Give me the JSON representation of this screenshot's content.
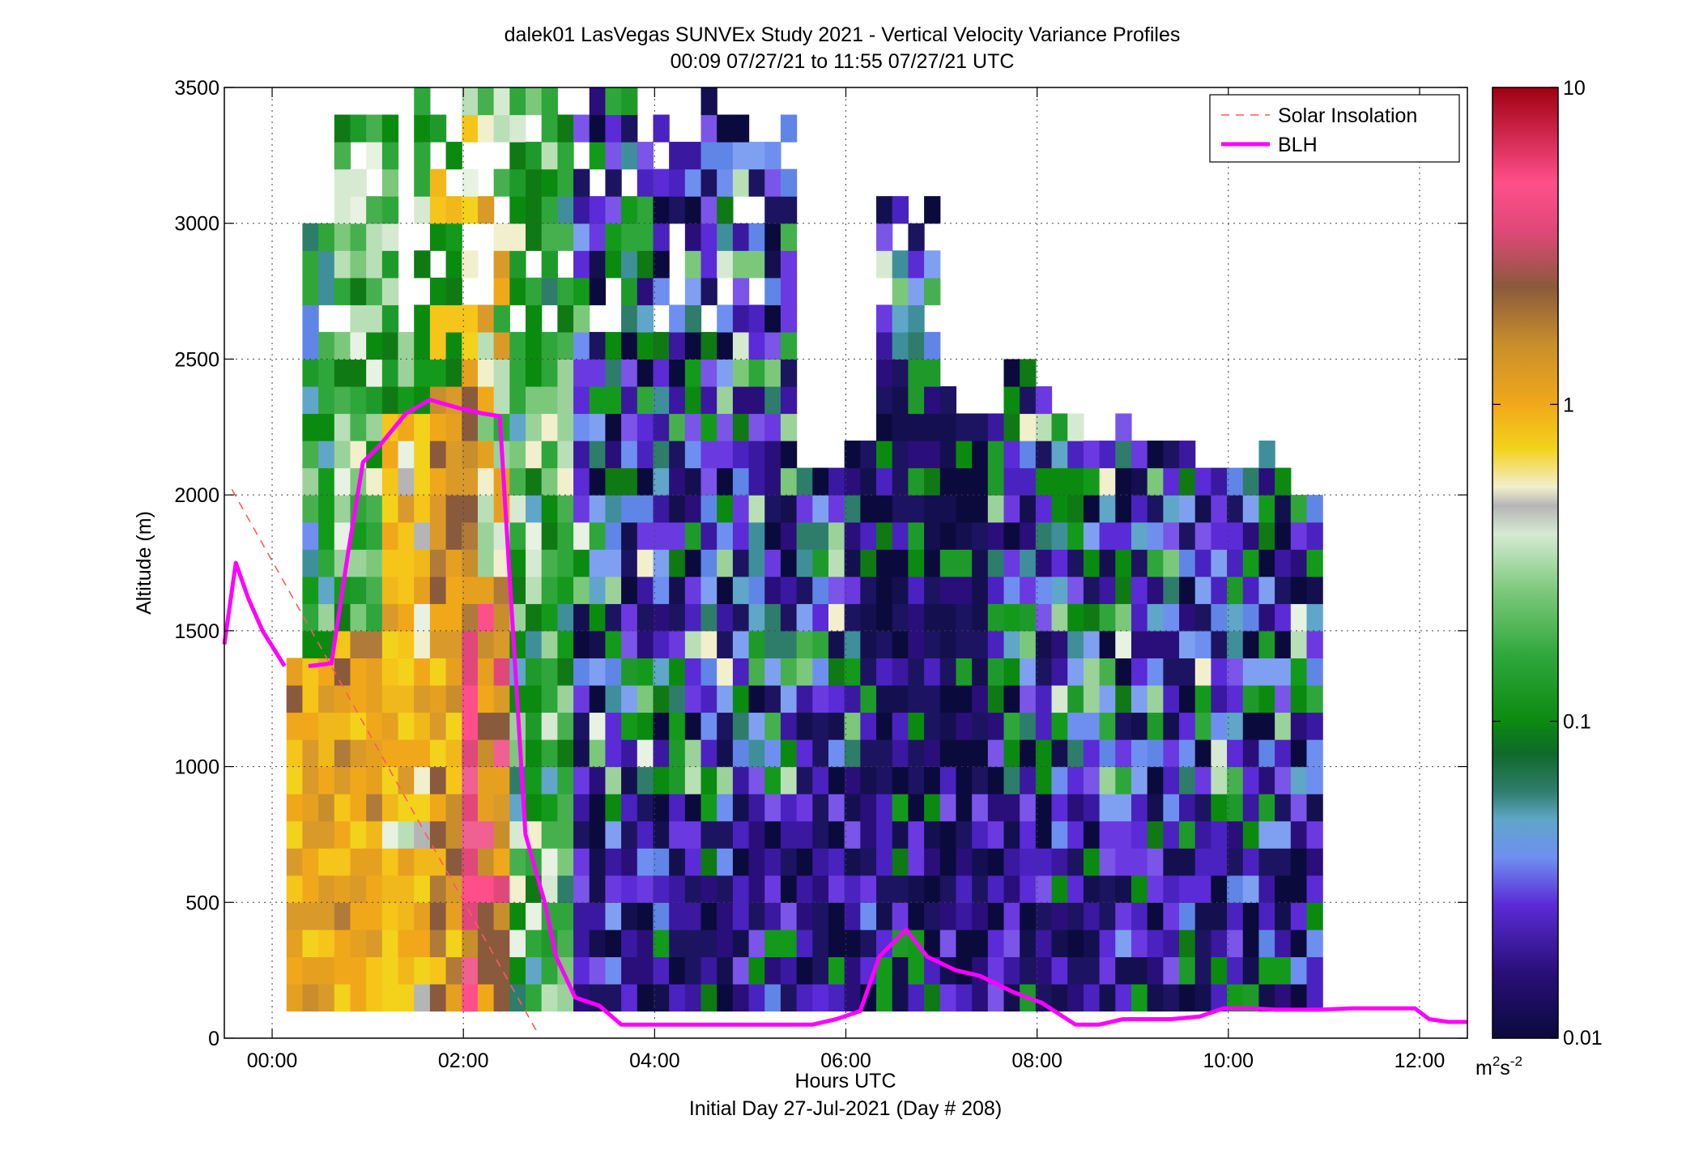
{
  "chart_data": {
    "type": "heatmap",
    "title": "dalek01 LasVegas SUNVEx Study 2021 - Vertical Velocity Variance Profiles",
    "subtitle": "00:09 07/27/21 to 11:55 07/27/21  UTC",
    "xlabel": "Hours UTC",
    "xlabel2": "Initial Day 27-Jul-2021 (Day # 208)",
    "ylabel": "Altitude (m)",
    "xlim": [
      -0.5,
      12.5
    ],
    "ylim": [
      0,
      3500
    ],
    "x_ticks": [
      0,
      2,
      4,
      6,
      8,
      10,
      12
    ],
    "x_tick_labels": [
      "00:00",
      "02:00",
      "04:00",
      "06:00",
      "08:00",
      "10:00",
      "12:00"
    ],
    "y_ticks": [
      0,
      500,
      1000,
      1500,
      2000,
      2500,
      3000,
      3500
    ],
    "y_tick_labels": [
      "0",
      "500",
      "1000",
      "1500",
      "2000",
      "2500",
      "3000",
      "3500"
    ],
    "grid": true,
    "legend_position": "top-right",
    "colorbar": {
      "scale": "log",
      "range": [
        0.01,
        10
      ],
      "ticks": [
        0.01,
        0.1,
        1,
        10
      ],
      "tick_labels": [
        "0.01",
        "0.1",
        "1",
        "10"
      ],
      "units_base": "m",
      "units_sup1": "2",
      "units_mid": "s",
      "units_sup2": "-2"
    },
    "heatmap": {
      "x_start_hour": 0.15,
      "column_step_hours": 0.1667,
      "y_start_m": 100,
      "row_step_m": 100,
      "top_altitude_m": [
        1400,
        3000,
        3000,
        3400,
        3400,
        3400,
        3400,
        2600,
        3500,
        3500,
        3400,
        3500,
        3500,
        3500,
        3500,
        3500,
        3500,
        3400,
        3400,
        3500,
        3500,
        3500,
        3400,
        3500,
        3400,
        3300,
        3500,
        3500,
        3400,
        3300,
        3300,
        3400,
        2100,
        2100,
        2100,
        2200,
        2200,
        3200,
        3100,
        3100,
        3100,
        2400,
        2300,
        2300,
        2300,
        2500,
        2500,
        2400,
        2300,
        2300,
        2200,
        2200,
        2300,
        2200,
        2200,
        2200,
        2200,
        2100,
        2100,
        2100,
        2100,
        2200,
        2100,
        2000,
        2000
      ],
      "row_labels_note": ""
    },
    "series": [
      {
        "name": "Solar Insolation",
        "style": "dashed",
        "color": "#ff5a5a",
        "x": [
          -0.42,
          2.76
        ],
        "y": [
          2020,
          30
        ]
      },
      {
        "name": "BLH",
        "style": "solid",
        "color": "#ff00ff",
        "segments": [
          {
            "x": [
              -0.5,
              -0.38,
              -0.25,
              -0.1,
              0.13
            ],
            "y": [
              1450,
              1750,
              1620,
              1500,
              1370
            ]
          },
          {
            "x": [
              0.38,
              0.62,
              0.8,
              0.95,
              1.12,
              1.4,
              1.65,
              1.95,
              2.2,
              2.38,
              2.65,
              2.85,
              2.97,
              3.17,
              3.42,
              3.65,
              4.2,
              4.9,
              5.65,
              5.9,
              6.15,
              6.35,
              6.63,
              6.85,
              7.15,
              7.4,
              7.75,
              8.05,
              8.4,
              8.65,
              8.9,
              9.1,
              9.4,
              9.7,
              9.95,
              10.25,
              10.5,
              10.95,
              11.3,
              11.7,
              11.95,
              12.1,
              12.3,
              12.5
            ],
            "y": [
              1370,
              1380,
              1800,
              2120,
              2180,
              2300,
              2350,
              2320,
              2300,
              2290,
              750,
              500,
              300,
              150,
              120,
              50,
              50,
              50,
              50,
              70,
              100,
              300,
              400,
              300,
              250,
              230,
              170,
              130,
              50,
              50,
              70,
              70,
              70,
              80,
              110,
              110,
              105,
              105,
              110,
              110,
              110,
              70,
              60,
              60
            ]
          }
        ]
      }
    ]
  }
}
